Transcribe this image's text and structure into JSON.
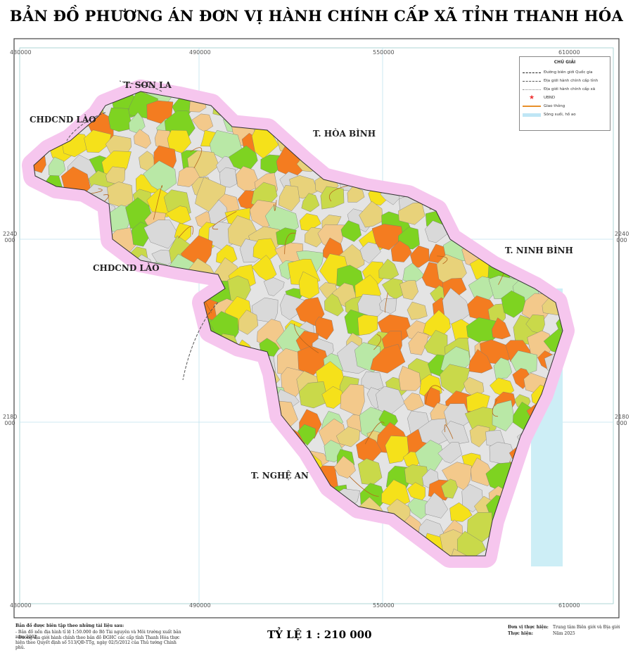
{
  "header": {
    "title": "BẢN ĐỒ PHƯƠNG ÁN ĐƠN VỊ HÀNH CHÍNH CẤP XÃ TỈNH THANH HÓA"
  },
  "coordinates": {
    "top": [
      "430000",
      "490000",
      "550000",
      "610000"
    ],
    "bottom": [
      "430000",
      "490000",
      "550000",
      "610000"
    ],
    "left": [
      "2240 000",
      "2180 000"
    ],
    "right": [
      "2240 000",
      "2180 000"
    ]
  },
  "regions": [
    "T. SƠN LA",
    "CHDCND LÀO",
    "T. HÒA BÌNH",
    "T. NINH BÌNH",
    "CHDCND LÀO",
    "T. NGHỆ AN"
  ],
  "legend": {
    "title": "CHÚ GIẢI",
    "items": [
      "Đường biên giới Quốc gia",
      "Địa giới hành chính cấp tỉnh",
      "Địa giới hành chính cấp xã",
      "UBND",
      "Giao thông",
      "Sông suối, hồ ao"
    ]
  },
  "footer": {
    "sources": [
      "Bản đồ được biên tập theo những tài liệu sau:",
      "- Bản đồ nền địa hình tỉ lệ 1:50.000 do Bộ Tài nguyên và Môi trường xuất bản năm 2002.",
      "- Đường địa giới hành chính theo bản đồ ĐGHC các cấp tỉnh Thanh Hóa thực hiện theo Quyết định số 513/QĐ-TTg, ngày 02/5/2012 của Thủ tướng Chính phủ."
    ],
    "scale": "TỶ LỆ 1 : 210 000",
    "credits": [
      [
        "Đơn vị thực hiện:",
        "Trung tâm Biên giới và Địa giới"
      ],
      [
        "Thực hiện:",
        "Năm 2025"
      ]
    ]
  }
}
